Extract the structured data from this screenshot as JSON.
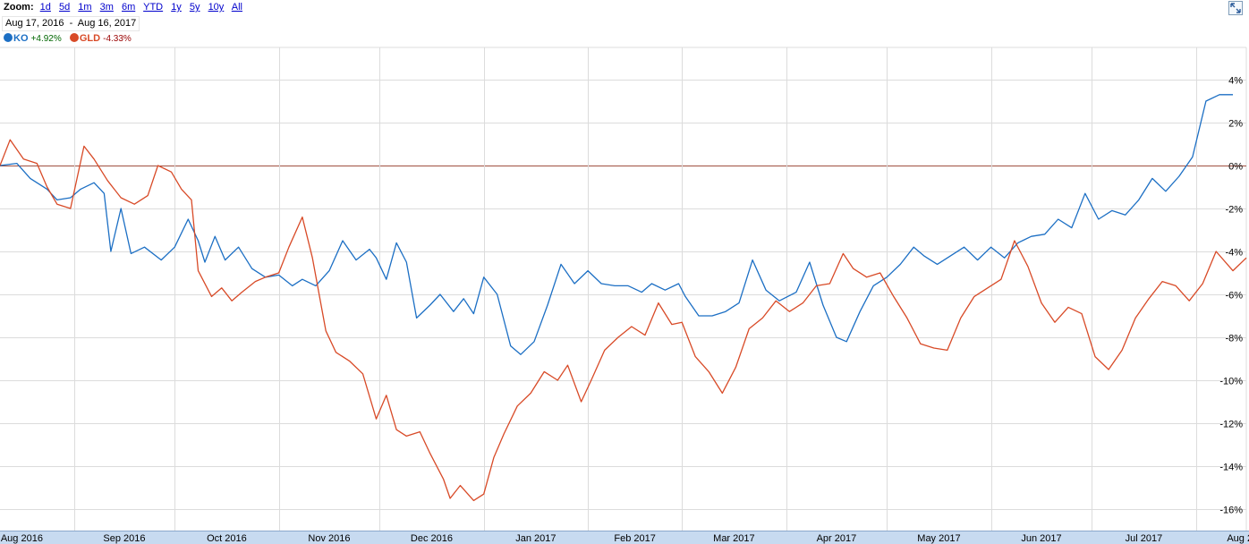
{
  "zoom": {
    "label": "Zoom:",
    "options": [
      "1d",
      "5d",
      "1m",
      "3m",
      "6m",
      "YTD",
      "1y",
      "5y",
      "10y",
      "All"
    ]
  },
  "date_range": {
    "start": "Aug 17, 2016",
    "separator": "-",
    "end": "Aug 16, 2017"
  },
  "legend": [
    {
      "symbol": "KO",
      "change": "+4.92%",
      "color": "#1c6fc4",
      "change_color": "#006600"
    },
    {
      "symbol": "GLD",
      "change": "-4.33%",
      "color": "#d84a27",
      "change_color": "#990000"
    }
  ],
  "expand_icon": "expand-arrows-icon",
  "colors": {
    "grid": "#dcdcdc",
    "zero_line": "#a05040",
    "axis_band": "#c7daf0"
  },
  "chart_data": {
    "type": "line",
    "y_unit": "%",
    "ylim": [
      -17,
      5.5
    ],
    "y_ticks": [
      "4%",
      "2%",
      "0%",
      "-2%",
      "-4%",
      "-6%",
      "-8%",
      "-10%",
      "-12%",
      "-14%",
      "-16%"
    ],
    "x_range": [
      "2016-08-10",
      "2017-08-16"
    ],
    "x_ticks": [
      {
        "label": "Aug 2016",
        "date": "2016-08-01"
      },
      {
        "label": "Sep 2016",
        "date": "2016-09-01"
      },
      {
        "label": "Oct 2016",
        "date": "2016-10-01"
      },
      {
        "label": "Nov 2016",
        "date": "2016-11-01"
      },
      {
        "label": "Dec 2016",
        "date": "2016-12-01"
      },
      {
        "label": "Jan 2017",
        "date": "2017-01-01"
      },
      {
        "label": "Feb 2017",
        "date": "2017-02-01"
      },
      {
        "label": "Mar 2017",
        "date": "2017-03-01"
      },
      {
        "label": "Apr 2017",
        "date": "2017-04-01"
      },
      {
        "label": "May 2017",
        "date": "2017-05-01"
      },
      {
        "label": "Jun 2017",
        "date": "2017-06-01"
      },
      {
        "label": "Jul 2017",
        "date": "2017-07-01"
      },
      {
        "label": "Aug 2017",
        "date": "2017-08-01"
      }
    ],
    "grid": true,
    "series": [
      {
        "name": "KO",
        "color": "#1c6fc4",
        "points": [
          [
            "2016-08-10",
            0.0
          ],
          [
            "2016-08-15",
            0.1
          ],
          [
            "2016-08-19",
            -0.6
          ],
          [
            "2016-08-24",
            -1.1
          ],
          [
            "2016-08-27",
            -1.6
          ],
          [
            "2016-08-31",
            -1.5
          ],
          [
            "2016-09-03",
            -1.1
          ],
          [
            "2016-09-07",
            -0.8
          ],
          [
            "2016-09-10",
            -1.3
          ],
          [
            "2016-09-12",
            -4.0
          ],
          [
            "2016-09-15",
            -2.0
          ],
          [
            "2016-09-18",
            -4.1
          ],
          [
            "2016-09-22",
            -3.8
          ],
          [
            "2016-09-27",
            -4.4
          ],
          [
            "2016-10-01",
            -3.8
          ],
          [
            "2016-10-05",
            -2.5
          ],
          [
            "2016-10-08",
            -3.5
          ],
          [
            "2016-10-10",
            -4.5
          ],
          [
            "2016-10-13",
            -3.3
          ],
          [
            "2016-10-16",
            -4.4
          ],
          [
            "2016-10-20",
            -3.8
          ],
          [
            "2016-10-24",
            -4.8
          ],
          [
            "2016-10-28",
            -5.2
          ],
          [
            "2016-11-01",
            -5.1
          ],
          [
            "2016-11-05",
            -5.6
          ],
          [
            "2016-11-08",
            -5.3
          ],
          [
            "2016-11-12",
            -5.6
          ],
          [
            "2016-11-16",
            -4.9
          ],
          [
            "2016-11-20",
            -3.5
          ],
          [
            "2016-11-24",
            -4.4
          ],
          [
            "2016-11-28",
            -3.9
          ],
          [
            "2016-11-30",
            -4.3
          ],
          [
            "2016-12-03",
            -5.3
          ],
          [
            "2016-12-06",
            -3.6
          ],
          [
            "2016-12-09",
            -4.5
          ],
          [
            "2016-12-12",
            -7.1
          ],
          [
            "2016-12-16",
            -6.5
          ],
          [
            "2016-12-19",
            -6.0
          ],
          [
            "2016-12-23",
            -6.8
          ],
          [
            "2016-12-26",
            -6.2
          ],
          [
            "2016-12-29",
            -6.9
          ],
          [
            "2017-01-01",
            -5.2
          ],
          [
            "2017-01-05",
            -6.0
          ],
          [
            "2017-01-09",
            -8.4
          ],
          [
            "2017-01-12",
            -8.8
          ],
          [
            "2017-01-16",
            -8.2
          ],
          [
            "2017-01-20",
            -6.5
          ],
          [
            "2017-01-24",
            -4.6
          ],
          [
            "2017-01-28",
            -5.5
          ],
          [
            "2017-02-01",
            -4.9
          ],
          [
            "2017-02-05",
            -5.5
          ],
          [
            "2017-02-09",
            -5.6
          ],
          [
            "2017-02-13",
            -5.6
          ],
          [
            "2017-02-17",
            -5.9
          ],
          [
            "2017-02-20",
            -5.5
          ],
          [
            "2017-02-24",
            -5.8
          ],
          [
            "2017-02-28",
            -5.5
          ],
          [
            "2017-03-02",
            -6.1
          ],
          [
            "2017-03-06",
            -7.0
          ],
          [
            "2017-03-10",
            -7.0
          ],
          [
            "2017-03-14",
            -6.8
          ],
          [
            "2017-03-18",
            -6.4
          ],
          [
            "2017-03-22",
            -4.4
          ],
          [
            "2017-03-26",
            -5.8
          ],
          [
            "2017-03-30",
            -6.3
          ],
          [
            "2017-04-04",
            -5.9
          ],
          [
            "2017-04-08",
            -4.5
          ],
          [
            "2017-04-12",
            -6.5
          ],
          [
            "2017-04-16",
            -8.0
          ],
          [
            "2017-04-19",
            -8.2
          ],
          [
            "2017-04-23",
            -6.8
          ],
          [
            "2017-04-27",
            -5.6
          ],
          [
            "2017-05-01",
            -5.2
          ],
          [
            "2017-05-05",
            -4.6
          ],
          [
            "2017-05-09",
            -3.8
          ],
          [
            "2017-05-12",
            -4.2
          ],
          [
            "2017-05-16",
            -4.6
          ],
          [
            "2017-05-20",
            -4.2
          ],
          [
            "2017-05-24",
            -3.8
          ],
          [
            "2017-05-28",
            -4.4
          ],
          [
            "2017-06-01",
            -3.8
          ],
          [
            "2017-06-05",
            -4.3
          ],
          [
            "2017-06-09",
            -3.6
          ],
          [
            "2017-06-13",
            -3.3
          ],
          [
            "2017-06-17",
            -3.2
          ],
          [
            "2017-06-21",
            -2.5
          ],
          [
            "2017-06-25",
            -2.9
          ],
          [
            "2017-06-29",
            -1.3
          ],
          [
            "2017-07-03",
            -2.5
          ],
          [
            "2017-07-07",
            -2.1
          ],
          [
            "2017-07-11",
            -2.3
          ],
          [
            "2017-07-15",
            -1.6
          ],
          [
            "2017-07-19",
            -0.6
          ],
          [
            "2017-07-23",
            -1.2
          ],
          [
            "2017-07-27",
            -0.5
          ],
          [
            "2017-07-31",
            0.4
          ],
          [
            "2017-08-04",
            3.0
          ],
          [
            "2017-08-08",
            3.3
          ],
          [
            "2017-08-12",
            3.3
          ]
        ]
      },
      {
        "name": "GLD",
        "color": "#d84a27",
        "points": [
          [
            "2016-08-10",
            0.0
          ],
          [
            "2016-08-13",
            1.2
          ],
          [
            "2016-08-17",
            0.3
          ],
          [
            "2016-08-21",
            0.1
          ],
          [
            "2016-08-24",
            -1.0
          ],
          [
            "2016-08-27",
            -1.8
          ],
          [
            "2016-08-31",
            -2.0
          ],
          [
            "2016-09-04",
            0.9
          ],
          [
            "2016-09-07",
            0.3
          ],
          [
            "2016-09-11",
            -0.7
          ],
          [
            "2016-09-15",
            -1.5
          ],
          [
            "2016-09-19",
            -1.8
          ],
          [
            "2016-09-23",
            -1.4
          ],
          [
            "2016-09-26",
            0.0
          ],
          [
            "2016-09-30",
            -0.3
          ],
          [
            "2016-10-03",
            -1.1
          ],
          [
            "2016-10-06",
            -1.6
          ],
          [
            "2016-10-08",
            -4.9
          ],
          [
            "2016-10-12",
            -6.1
          ],
          [
            "2016-10-15",
            -5.7
          ],
          [
            "2016-10-18",
            -6.3
          ],
          [
            "2016-10-21",
            -5.9
          ],
          [
            "2016-10-25",
            -5.4
          ],
          [
            "2016-10-28",
            -5.2
          ],
          [
            "2016-11-01",
            -5.0
          ],
          [
            "2016-11-04",
            -3.8
          ],
          [
            "2016-11-08",
            -2.4
          ],
          [
            "2016-11-11",
            -4.3
          ],
          [
            "2016-11-15",
            -7.7
          ],
          [
            "2016-11-18",
            -8.7
          ],
          [
            "2016-11-22",
            -9.1
          ],
          [
            "2016-11-26",
            -9.7
          ],
          [
            "2016-11-30",
            -11.8
          ],
          [
            "2016-12-03",
            -10.7
          ],
          [
            "2016-12-06",
            -12.3
          ],
          [
            "2016-12-09",
            -12.6
          ],
          [
            "2016-12-13",
            -12.4
          ],
          [
            "2016-12-16",
            -13.4
          ],
          [
            "2016-12-20",
            -14.6
          ],
          [
            "2016-12-22",
            -15.5
          ],
          [
            "2016-12-25",
            -14.9
          ],
          [
            "2016-12-29",
            -15.6
          ],
          [
            "2017-01-01",
            -15.3
          ],
          [
            "2017-01-04",
            -13.6
          ],
          [
            "2017-01-07",
            -12.5
          ],
          [
            "2017-01-11",
            -11.2
          ],
          [
            "2017-01-15",
            -10.6
          ],
          [
            "2017-01-19",
            -9.6
          ],
          [
            "2017-01-23",
            -10.0
          ],
          [
            "2017-01-26",
            -9.3
          ],
          [
            "2017-01-30",
            -11.0
          ],
          [
            "2017-02-02",
            -10.0
          ],
          [
            "2017-02-06",
            -8.6
          ],
          [
            "2017-02-10",
            -8.0
          ],
          [
            "2017-02-14",
            -7.5
          ],
          [
            "2017-02-18",
            -7.9
          ],
          [
            "2017-02-22",
            -6.4
          ],
          [
            "2017-02-26",
            -7.4
          ],
          [
            "2017-03-01",
            -7.3
          ],
          [
            "2017-03-05",
            -8.9
          ],
          [
            "2017-03-09",
            -9.6
          ],
          [
            "2017-03-13",
            -10.6
          ],
          [
            "2017-03-17",
            -9.4
          ],
          [
            "2017-03-21",
            -7.6
          ],
          [
            "2017-03-25",
            -7.1
          ],
          [
            "2017-03-29",
            -6.3
          ],
          [
            "2017-04-02",
            -6.8
          ],
          [
            "2017-04-06",
            -6.4
          ],
          [
            "2017-04-10",
            -5.6
          ],
          [
            "2017-04-14",
            -5.5
          ],
          [
            "2017-04-18",
            -4.1
          ],
          [
            "2017-04-21",
            -4.8
          ],
          [
            "2017-04-25",
            -5.2
          ],
          [
            "2017-04-29",
            -5.0
          ],
          [
            "2017-05-03",
            -6.1
          ],
          [
            "2017-05-07",
            -7.1
          ],
          [
            "2017-05-11",
            -8.3
          ],
          [
            "2017-05-15",
            -8.5
          ],
          [
            "2017-05-19",
            -8.6
          ],
          [
            "2017-05-23",
            -7.1
          ],
          [
            "2017-05-27",
            -6.1
          ],
          [
            "2017-05-31",
            -5.7
          ],
          [
            "2017-06-04",
            -5.3
          ],
          [
            "2017-06-08",
            -3.5
          ],
          [
            "2017-06-12",
            -4.7
          ],
          [
            "2017-06-16",
            -6.4
          ],
          [
            "2017-06-20",
            -7.3
          ],
          [
            "2017-06-24",
            -6.6
          ],
          [
            "2017-06-28",
            -6.9
          ],
          [
            "2017-07-02",
            -8.9
          ],
          [
            "2017-07-06",
            -9.5
          ],
          [
            "2017-07-10",
            -8.6
          ],
          [
            "2017-07-14",
            -7.1
          ],
          [
            "2017-07-18",
            -6.2
          ],
          [
            "2017-07-22",
            -5.4
          ],
          [
            "2017-07-26",
            -5.6
          ],
          [
            "2017-07-30",
            -6.3
          ],
          [
            "2017-08-03",
            -5.5
          ],
          [
            "2017-08-07",
            -4.0
          ],
          [
            "2017-08-12",
            -4.9
          ],
          [
            "2017-08-16",
            -4.3
          ]
        ]
      }
    ]
  }
}
